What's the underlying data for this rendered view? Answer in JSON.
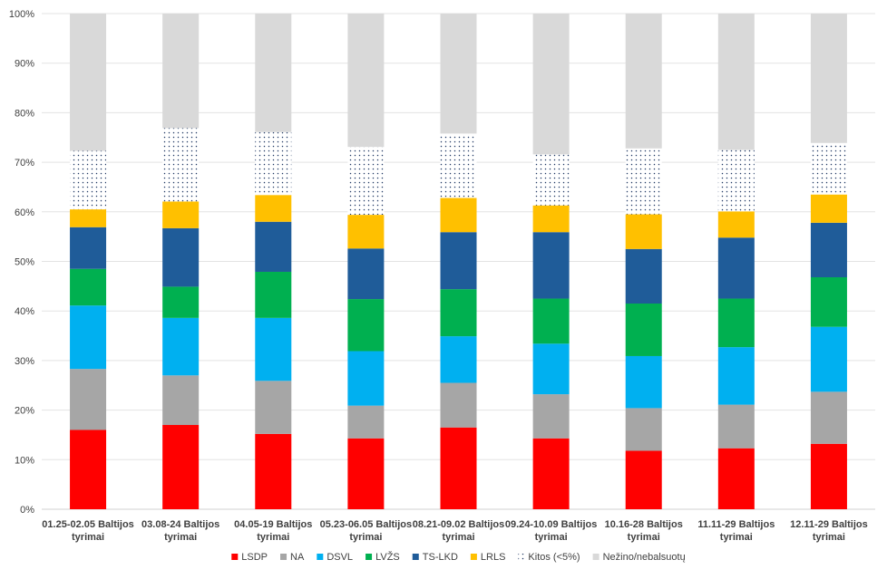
{
  "chart_data": {
    "type": "bar",
    "stacked": "100%",
    "title": "",
    "xlabel": "",
    "ylabel": "",
    "ylim": [
      0,
      100
    ],
    "yticks": [
      "0%",
      "10%",
      "20%",
      "30%",
      "40%",
      "50%",
      "60%",
      "70%",
      "80%",
      "90%",
      "100%"
    ],
    "grid": true,
    "legend_position": "bottom",
    "categories": [
      [
        "01.25-02.05 Baltijos",
        "tyrimai"
      ],
      [
        "03.08-24 Baltijos",
        "tyrimai"
      ],
      [
        "04.05-19 Baltijos",
        "tyrimai"
      ],
      [
        "05.23-06.05 Baltijos",
        "tyrimai"
      ],
      [
        "08.21-09.02 Baltijos",
        "tyrimai"
      ],
      [
        "09.24-10.09 Baltijos",
        "tyrimai"
      ],
      [
        "10.16-28 Baltijos",
        "tyrimai"
      ],
      [
        "11.11-29 Baltijos",
        "tyrimai"
      ],
      [
        "12.11-29 Baltijos",
        "tyrimai"
      ]
    ],
    "series": [
      {
        "name": "LSDP",
        "color": "#ff0000",
        "values": [
          16.0,
          17.0,
          15.2,
          14.3,
          16.5,
          14.3,
          11.8,
          12.3,
          13.2
        ]
      },
      {
        "name": "NA",
        "color": "#a6a6a6",
        "values": [
          12.3,
          10.0,
          10.7,
          6.6,
          9.0,
          8.9,
          8.6,
          8.8,
          10.5
        ]
      },
      {
        "name": "DSVL",
        "color": "#00b0f0",
        "values": [
          12.8,
          11.6,
          12.7,
          11.0,
          9.4,
          10.2,
          10.5,
          11.6,
          13.1
        ]
      },
      {
        "name": "LVŽS",
        "color": "#00b050",
        "values": [
          7.4,
          6.3,
          9.3,
          10.5,
          9.5,
          9.1,
          10.6,
          9.8,
          10.0
        ]
      },
      {
        "name": "TS-LKD",
        "color": "#1f5c99",
        "values": [
          8.4,
          11.8,
          10.1,
          10.2,
          11.5,
          13.4,
          11.0,
          12.3,
          11.0
        ]
      },
      {
        "name": "LRLS",
        "color": "#ffc000",
        "values": [
          3.6,
          5.4,
          5.4,
          6.8,
          6.9,
          5.4,
          7.0,
          5.3,
          5.7
        ]
      },
      {
        "name": "Kitos (<5%)",
        "color": "#dce6f2",
        "pattern": "dots",
        "values": [
          11.8,
          14.8,
          12.7,
          13.7,
          13.0,
          10.3,
          13.3,
          12.4,
          10.4
        ]
      },
      {
        "name": "Nežino/nebalsuotų",
        "color": "#d9d9d9",
        "values": [
          27.7,
          23.1,
          23.9,
          26.9,
          24.2,
          28.4,
          27.2,
          27.5,
          26.1
        ]
      }
    ]
  }
}
